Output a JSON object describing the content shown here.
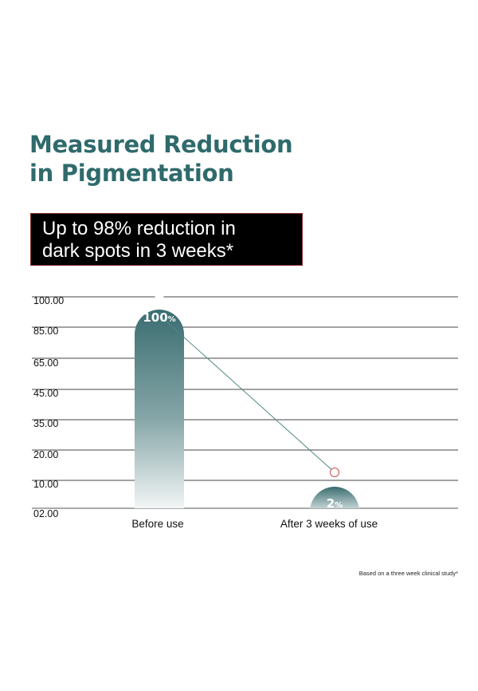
{
  "heading": {
    "line1": "Measured Reduction",
    "line2": "in Pigmentation"
  },
  "banner": {
    "line1": "Up to 98% reduction in",
    "line2": "dark spots in 3 weeks*"
  },
  "footnote": "Based on a three week clinical study*",
  "colors": {
    "accent": "#2f6a6c",
    "bar_top": "#3a6d70",
    "marker_after": "#c8504a"
  },
  "chart_data": {
    "type": "bar",
    "categories": [
      "Before use",
      "After 3 weeks of use"
    ],
    "values": [
      100,
      2
    ],
    "value_labels": [
      {
        "number": "100",
        "unit": "%"
      },
      {
        "number": "2",
        "unit": "%"
      }
    ],
    "y_tick_labels": [
      "100.00",
      "85.00",
      "65.00",
      "45.00",
      "35.00",
      "20.00",
      "10.00",
      "02.00"
    ],
    "ylim": [
      2,
      100
    ],
    "grid": true,
    "connector_line": true
  }
}
